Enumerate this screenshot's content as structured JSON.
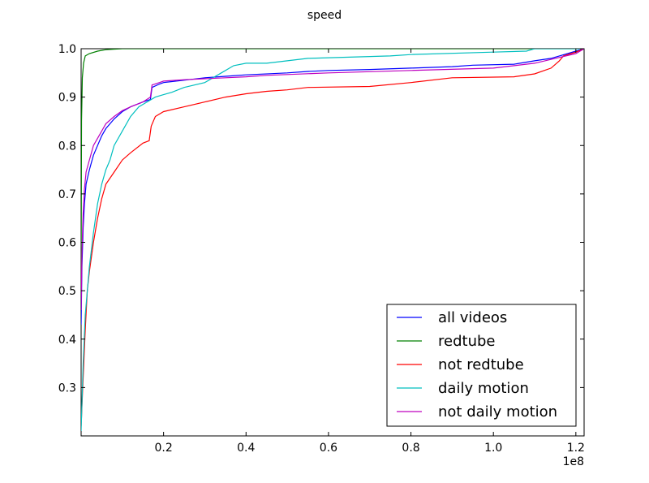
{
  "chart_data": {
    "type": "line",
    "title": "speed",
    "xlabel": "",
    "ylabel": "",
    "x_offset_label": "1e8",
    "xlim": [
      0,
      1.22
    ],
    "ylim": [
      0.2,
      1.0
    ],
    "xticks": [
      "0.2",
      "0.4",
      "0.6",
      "0.8",
      "1.0",
      "1.2"
    ],
    "yticks": [
      "0.3",
      "0.4",
      "0.5",
      "0.6",
      "0.7",
      "0.8",
      "0.9",
      "1.0"
    ],
    "grid": false,
    "legend_position": "lower right",
    "series": [
      {
        "name": "all videos",
        "color": "#0000ff",
        "points": [
          [
            0,
            0.43
          ],
          [
            0.002,
            0.55
          ],
          [
            0.005,
            0.63
          ],
          [
            0.008,
            0.68
          ],
          [
            0.012,
            0.72
          ],
          [
            0.02,
            0.75
          ],
          [
            0.03,
            0.78
          ],
          [
            0.04,
            0.8
          ],
          [
            0.05,
            0.82
          ],
          [
            0.06,
            0.835
          ],
          [
            0.08,
            0.855
          ],
          [
            0.1,
            0.87
          ],
          [
            0.12,
            0.88
          ],
          [
            0.15,
            0.89
          ],
          [
            0.168,
            0.895
          ],
          [
            0.172,
            0.92
          ],
          [
            0.19,
            0.927
          ],
          [
            0.2,
            0.93
          ],
          [
            0.22,
            0.932
          ],
          [
            0.25,
            0.935
          ],
          [
            0.3,
            0.94
          ],
          [
            0.35,
            0.943
          ],
          [
            0.4,
            0.946
          ],
          [
            0.5,
            0.95
          ],
          [
            0.55,
            0.953
          ],
          [
            0.6,
            0.955
          ],
          [
            0.7,
            0.957
          ],
          [
            0.8,
            0.96
          ],
          [
            0.9,
            0.963
          ],
          [
            0.95,
            0.966
          ],
          [
            1.05,
            0.968
          ],
          [
            1.1,
            0.975
          ],
          [
            1.14,
            0.98
          ],
          [
            1.16,
            0.985
          ],
          [
            1.18,
            0.99
          ],
          [
            1.2,
            0.995
          ],
          [
            1.22,
            1.0
          ]
        ]
      },
      {
        "name": "redtube",
        "color": "#008000",
        "points": [
          [
            0,
            0.5
          ],
          [
            0.001,
            0.85
          ],
          [
            0.003,
            0.94
          ],
          [
            0.006,
            0.97
          ],
          [
            0.01,
            0.985
          ],
          [
            0.02,
            0.99
          ],
          [
            0.04,
            0.995
          ],
          [
            0.06,
            0.998
          ],
          [
            0.1,
            1.0
          ],
          [
            1.22,
            1.0
          ]
        ]
      },
      {
        "name": "not redtube",
        "color": "#ff0000",
        "points": [
          [
            0,
            0.22
          ],
          [
            0.005,
            0.32
          ],
          [
            0.01,
            0.42
          ],
          [
            0.015,
            0.5
          ],
          [
            0.02,
            0.54
          ],
          [
            0.03,
            0.6
          ],
          [
            0.04,
            0.65
          ],
          [
            0.05,
            0.69
          ],
          [
            0.06,
            0.72
          ],
          [
            0.08,
            0.745
          ],
          [
            0.1,
            0.77
          ],
          [
            0.12,
            0.785
          ],
          [
            0.15,
            0.805
          ],
          [
            0.165,
            0.81
          ],
          [
            0.17,
            0.84
          ],
          [
            0.18,
            0.86
          ],
          [
            0.2,
            0.87
          ],
          [
            0.25,
            0.88
          ],
          [
            0.3,
            0.89
          ],
          [
            0.35,
            0.9
          ],
          [
            0.4,
            0.907
          ],
          [
            0.45,
            0.912
          ],
          [
            0.5,
            0.915
          ],
          [
            0.55,
            0.92
          ],
          [
            0.7,
            0.922
          ],
          [
            0.8,
            0.93
          ],
          [
            0.9,
            0.94
          ],
          [
            1.05,
            0.942
          ],
          [
            1.1,
            0.948
          ],
          [
            1.14,
            0.96
          ],
          [
            1.16,
            0.975
          ],
          [
            1.17,
            0.985
          ],
          [
            1.2,
            0.993
          ],
          [
            1.22,
            1.0
          ]
        ]
      },
      {
        "name": "daily motion",
        "color": "#00bfbf",
        "points": [
          [
            0,
            0.21
          ],
          [
            0.005,
            0.35
          ],
          [
            0.01,
            0.45
          ],
          [
            0.02,
            0.55
          ],
          [
            0.03,
            0.62
          ],
          [
            0.04,
            0.68
          ],
          [
            0.05,
            0.72
          ],
          [
            0.06,
            0.75
          ],
          [
            0.07,
            0.77
          ],
          [
            0.08,
            0.8
          ],
          [
            0.1,
            0.83
          ],
          [
            0.12,
            0.86
          ],
          [
            0.14,
            0.88
          ],
          [
            0.16,
            0.89
          ],
          [
            0.18,
            0.9
          ],
          [
            0.2,
            0.905
          ],
          [
            0.22,
            0.91
          ],
          [
            0.25,
            0.92
          ],
          [
            0.3,
            0.93
          ],
          [
            0.34,
            0.95
          ],
          [
            0.37,
            0.965
          ],
          [
            0.4,
            0.97
          ],
          [
            0.45,
            0.97
          ],
          [
            0.5,
            0.975
          ],
          [
            0.55,
            0.98
          ],
          [
            0.75,
            0.985
          ],
          [
            0.8,
            0.988
          ],
          [
            1.0,
            0.993
          ],
          [
            1.08,
            0.995
          ],
          [
            1.1,
            1.0
          ],
          [
            1.22,
            1.0
          ]
        ]
      },
      {
        "name": "not daily motion",
        "color": "#bf00bf",
        "points": [
          [
            0,
            0.46
          ],
          [
            0.002,
            0.58
          ],
          [
            0.005,
            0.66
          ],
          [
            0.008,
            0.71
          ],
          [
            0.012,
            0.745
          ],
          [
            0.02,
            0.77
          ],
          [
            0.03,
            0.8
          ],
          [
            0.04,
            0.815
          ],
          [
            0.05,
            0.83
          ],
          [
            0.06,
            0.845
          ],
          [
            0.08,
            0.86
          ],
          [
            0.1,
            0.872
          ],
          [
            0.12,
            0.88
          ],
          [
            0.15,
            0.89
          ],
          [
            0.168,
            0.9
          ],
          [
            0.172,
            0.925
          ],
          [
            0.19,
            0.93
          ],
          [
            0.2,
            0.933
          ],
          [
            0.25,
            0.936
          ],
          [
            0.3,
            0.938
          ],
          [
            0.35,
            0.94
          ],
          [
            0.4,
            0.942
          ],
          [
            0.45,
            0.945
          ],
          [
            0.6,
            0.95
          ],
          [
            0.8,
            0.955
          ],
          [
            1.0,
            0.96
          ],
          [
            1.1,
            0.97
          ],
          [
            1.15,
            0.98
          ],
          [
            1.2,
            0.99
          ],
          [
            1.22,
            1.0
          ]
        ]
      }
    ]
  }
}
